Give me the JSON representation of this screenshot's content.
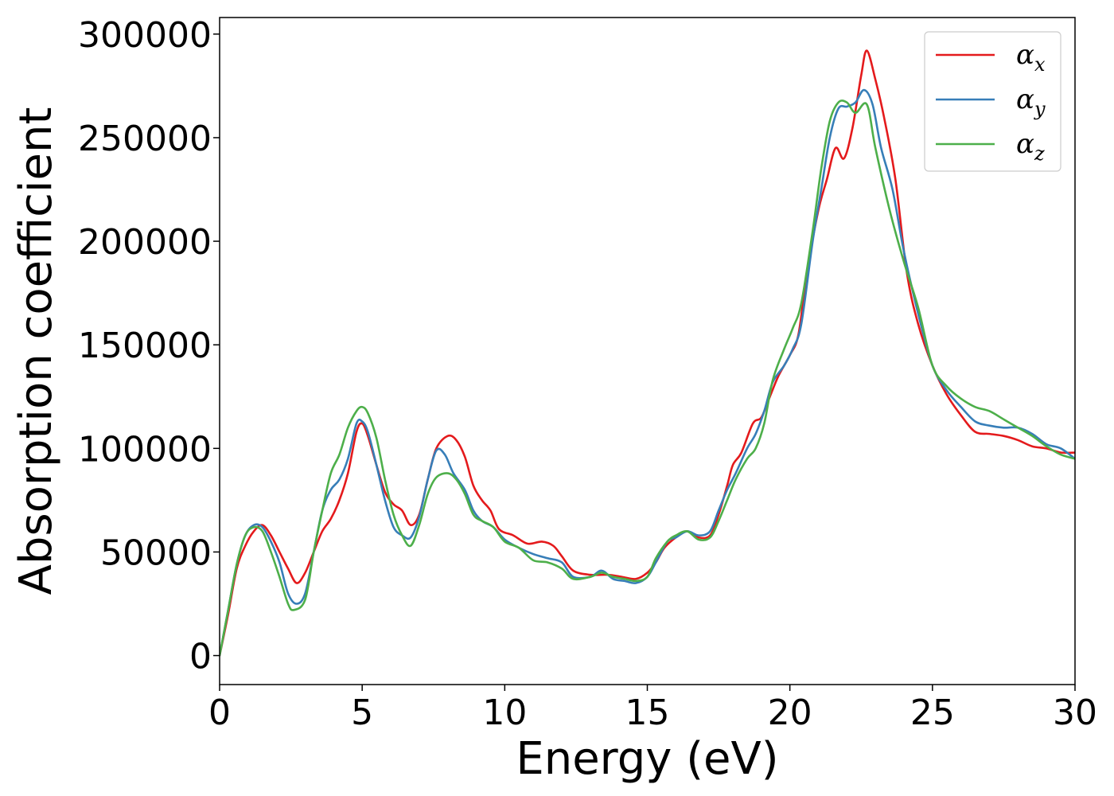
{
  "chart_data": {
    "type": "line",
    "xlabel": "Energy (eV)",
    "ylabel": "Absorption coefficient",
    "xlim": [
      0,
      30
    ],
    "ylim": [
      -14000,
      308000
    ],
    "xticks": [
      0,
      5,
      10,
      15,
      20,
      25,
      30
    ],
    "xtick_labels": [
      "0",
      "5",
      "10",
      "15",
      "20",
      "25",
      "30"
    ],
    "yticks": [
      0,
      50000,
      100000,
      150000,
      200000,
      250000,
      300000
    ],
    "ytick_labels": [
      "0",
      "50000",
      "100000",
      "150000",
      "200000",
      "250000",
      "300000"
    ],
    "grid": false,
    "legend_position": "top-right",
    "series": [
      {
        "name": "αx",
        "legend_base": "α",
        "legend_sub": "x",
        "color": "#e41a1c",
        "points": [
          [
            0,
            0
          ],
          [
            0.3,
            20000
          ],
          [
            0.6,
            42000
          ],
          [
            0.9,
            53000
          ],
          [
            1.2,
            60000
          ],
          [
            1.5,
            63000
          ],
          [
            1.8,
            58000
          ],
          [
            2.1,
            50000
          ],
          [
            2.4,
            42000
          ],
          [
            2.7,
            35000
          ],
          [
            3.0,
            40000
          ],
          [
            3.3,
            50000
          ],
          [
            3.6,
            60000
          ],
          [
            3.9,
            66000
          ],
          [
            4.2,
            75000
          ],
          [
            4.5,
            88000
          ],
          [
            4.8,
            108000
          ],
          [
            5.0,
            112000
          ],
          [
            5.2,
            106000
          ],
          [
            5.5,
            92000
          ],
          [
            5.8,
            79000
          ],
          [
            6.1,
            73000
          ],
          [
            6.4,
            70000
          ],
          [
            6.7,
            63000
          ],
          [
            7.0,
            68000
          ],
          [
            7.3,
            85000
          ],
          [
            7.6,
            100000
          ],
          [
            8.0,
            106000
          ],
          [
            8.3,
            104000
          ],
          [
            8.6,
            96000
          ],
          [
            8.9,
            82000
          ],
          [
            9.2,
            75000
          ],
          [
            9.5,
            70000
          ],
          [
            9.8,
            61000
          ],
          [
            10.3,
            58000
          ],
          [
            10.8,
            54000
          ],
          [
            11.3,
            55000
          ],
          [
            11.7,
            53000
          ],
          [
            12.0,
            48000
          ],
          [
            12.4,
            41000
          ],
          [
            13.0,
            39000
          ],
          [
            13.6,
            39000
          ],
          [
            14.1,
            38000
          ],
          [
            14.6,
            37000
          ],
          [
            15.0,
            40000
          ],
          [
            15.3,
            45000
          ],
          [
            15.6,
            52000
          ],
          [
            16.0,
            57000
          ],
          [
            16.4,
            60000
          ],
          [
            16.8,
            57000
          ],
          [
            17.2,
            58000
          ],
          [
            17.5,
            68000
          ],
          [
            17.8,
            82000
          ],
          [
            18.0,
            92000
          ],
          [
            18.3,
            98000
          ],
          [
            18.7,
            112000
          ],
          [
            19.0,
            115000
          ],
          [
            19.3,
            125000
          ],
          [
            19.6,
            135000
          ],
          [
            20.0,
            145000
          ],
          [
            20.3,
            155000
          ],
          [
            20.6,
            185000
          ],
          [
            21.0,
            215000
          ],
          [
            21.3,
            230000
          ],
          [
            21.6,
            245000
          ],
          [
            21.9,
            240000
          ],
          [
            22.2,
            255000
          ],
          [
            22.5,
            280000
          ],
          [
            22.7,
            292000
          ],
          [
            23.0,
            278000
          ],
          [
            23.3,
            260000
          ],
          [
            23.7,
            230000
          ],
          [
            24.1,
            185000
          ],
          [
            24.5,
            160000
          ],
          [
            25.0,
            140000
          ],
          [
            25.5,
            126000
          ],
          [
            26.0,
            116000
          ],
          [
            26.5,
            108000
          ],
          [
            27.0,
            107000
          ],
          [
            27.5,
            106000
          ],
          [
            28.0,
            104000
          ],
          [
            28.5,
            101000
          ],
          [
            29.0,
            100000
          ],
          [
            29.5,
            98000
          ],
          [
            30.0,
            98000
          ]
        ]
      },
      {
        "name": "αy",
        "legend_base": "α",
        "legend_sub": "y",
        "color": "#377eb8",
        "points": [
          [
            0,
            0
          ],
          [
            0.3,
            22000
          ],
          [
            0.6,
            44000
          ],
          [
            0.9,
            58000
          ],
          [
            1.2,
            63000
          ],
          [
            1.5,
            62000
          ],
          [
            1.8,
            55000
          ],
          [
            2.1,
            45000
          ],
          [
            2.4,
            30000
          ],
          [
            2.7,
            25000
          ],
          [
            3.0,
            30000
          ],
          [
            3.3,
            50000
          ],
          [
            3.6,
            70000
          ],
          [
            3.9,
            80000
          ],
          [
            4.2,
            85000
          ],
          [
            4.5,
            95000
          ],
          [
            4.8,
            112000
          ],
          [
            5.0,
            113000
          ],
          [
            5.2,
            108000
          ],
          [
            5.5,
            92000
          ],
          [
            5.8,
            75000
          ],
          [
            6.1,
            62000
          ],
          [
            6.4,
            58000
          ],
          [
            6.7,
            57000
          ],
          [
            7.0,
            67000
          ],
          [
            7.3,
            85000
          ],
          [
            7.6,
            99000
          ],
          [
            7.9,
            97000
          ],
          [
            8.2,
            88000
          ],
          [
            8.6,
            80000
          ],
          [
            8.9,
            70000
          ],
          [
            9.2,
            65000
          ],
          [
            9.6,
            62000
          ],
          [
            10.0,
            56000
          ],
          [
            10.5,
            52000
          ],
          [
            11.0,
            49000
          ],
          [
            11.5,
            47000
          ],
          [
            12.0,
            45000
          ],
          [
            12.4,
            38000
          ],
          [
            13.0,
            38000
          ],
          [
            13.4,
            41000
          ],
          [
            13.8,
            37000
          ],
          [
            14.2,
            36000
          ],
          [
            14.6,
            35000
          ],
          [
            15.0,
            38000
          ],
          [
            15.3,
            45000
          ],
          [
            15.7,
            55000
          ],
          [
            16.0,
            57000
          ],
          [
            16.4,
            60000
          ],
          [
            16.8,
            58000
          ],
          [
            17.2,
            60000
          ],
          [
            17.5,
            70000
          ],
          [
            17.8,
            80000
          ],
          [
            18.1,
            88000
          ],
          [
            18.5,
            100000
          ],
          [
            18.8,
            107000
          ],
          [
            19.1,
            118000
          ],
          [
            19.4,
            132000
          ],
          [
            19.8,
            140000
          ],
          [
            20.1,
            148000
          ],
          [
            20.4,
            160000
          ],
          [
            20.8,
            200000
          ],
          [
            21.1,
            225000
          ],
          [
            21.4,
            250000
          ],
          [
            21.7,
            264000
          ],
          [
            22.0,
            265000
          ],
          [
            22.3,
            267000
          ],
          [
            22.6,
            273000
          ],
          [
            22.9,
            266000
          ],
          [
            23.2,
            245000
          ],
          [
            23.6,
            225000
          ],
          [
            24.0,
            195000
          ],
          [
            24.5,
            165000
          ],
          [
            25.0,
            140000
          ],
          [
            25.5,
            128000
          ],
          [
            26.0,
            120000
          ],
          [
            26.5,
            113000
          ],
          [
            27.0,
            111000
          ],
          [
            27.5,
            110000
          ],
          [
            28.0,
            110000
          ],
          [
            28.5,
            107000
          ],
          [
            29.0,
            102000
          ],
          [
            29.5,
            100000
          ],
          [
            30.0,
            95000
          ]
        ]
      },
      {
        "name": "αz",
        "legend_base": "α",
        "legend_sub": "z",
        "color": "#4daf4a",
        "points": [
          [
            0,
            0
          ],
          [
            0.3,
            22000
          ],
          [
            0.6,
            44000
          ],
          [
            0.9,
            58000
          ],
          [
            1.2,
            62000
          ],
          [
            1.5,
            60000
          ],
          [
            1.8,
            50000
          ],
          [
            2.1,
            38000
          ],
          [
            2.4,
            25000
          ],
          [
            2.6,
            22000
          ],
          [
            3.0,
            27000
          ],
          [
            3.3,
            50000
          ],
          [
            3.6,
            70000
          ],
          [
            3.9,
            88000
          ],
          [
            4.2,
            97000
          ],
          [
            4.5,
            110000
          ],
          [
            4.8,
            118000
          ],
          [
            5.0,
            120000
          ],
          [
            5.2,
            117000
          ],
          [
            5.5,
            105000
          ],
          [
            5.8,
            85000
          ],
          [
            6.1,
            68000
          ],
          [
            6.4,
            58000
          ],
          [
            6.7,
            53000
          ],
          [
            7.0,
            63000
          ],
          [
            7.3,
            78000
          ],
          [
            7.6,
            86000
          ],
          [
            8.0,
            88000
          ],
          [
            8.3,
            85000
          ],
          [
            8.6,
            78000
          ],
          [
            8.9,
            68000
          ],
          [
            9.2,
            65000
          ],
          [
            9.6,
            62000
          ],
          [
            10.0,
            55000
          ],
          [
            10.5,
            52000
          ],
          [
            11.0,
            46000
          ],
          [
            11.5,
            45000
          ],
          [
            12.0,
            42000
          ],
          [
            12.4,
            37000
          ],
          [
            13.0,
            38000
          ],
          [
            13.4,
            40000
          ],
          [
            13.8,
            38000
          ],
          [
            14.2,
            37000
          ],
          [
            14.6,
            36000
          ],
          [
            15.0,
            38000
          ],
          [
            15.3,
            47000
          ],
          [
            15.7,
            55000
          ],
          [
            16.0,
            58000
          ],
          [
            16.4,
            60000
          ],
          [
            16.8,
            56000
          ],
          [
            17.2,
            57000
          ],
          [
            17.5,
            65000
          ],
          [
            17.8,
            75000
          ],
          [
            18.1,
            85000
          ],
          [
            18.5,
            95000
          ],
          [
            18.8,
            100000
          ],
          [
            19.1,
            112000
          ],
          [
            19.4,
            133000
          ],
          [
            19.8,
            148000
          ],
          [
            20.1,
            158000
          ],
          [
            20.4,
            170000
          ],
          [
            20.8,
            205000
          ],
          [
            21.1,
            235000
          ],
          [
            21.4,
            258000
          ],
          [
            21.7,
            267000
          ],
          [
            22.0,
            267000
          ],
          [
            22.3,
            262000
          ],
          [
            22.7,
            266000
          ],
          [
            23.0,
            245000
          ],
          [
            23.5,
            215000
          ],
          [
            24.0,
            190000
          ],
          [
            24.5,
            168000
          ],
          [
            25.0,
            140000
          ],
          [
            25.5,
            130000
          ],
          [
            26.0,
            124000
          ],
          [
            26.5,
            120000
          ],
          [
            27.0,
            118000
          ],
          [
            27.5,
            114000
          ],
          [
            28.0,
            110000
          ],
          [
            28.5,
            106000
          ],
          [
            29.0,
            101000
          ],
          [
            29.5,
            97000
          ],
          [
            30.0,
            95000
          ]
        ]
      }
    ]
  }
}
